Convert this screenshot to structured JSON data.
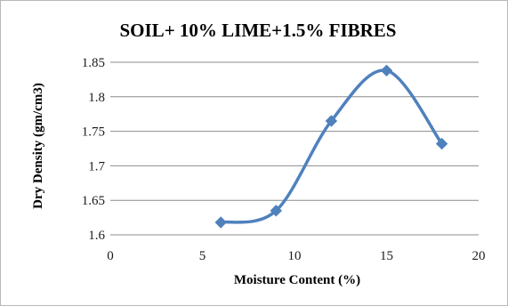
{
  "chart_data": {
    "type": "scatter",
    "title": "SOIL+ 10% LIME+1.5% FIBRES",
    "xlabel": "Moisture Content (%)",
    "ylabel": "Dry Density (gm/cm3)",
    "xlim": [
      0,
      20
    ],
    "ylim": [
      1.6,
      1.85
    ],
    "x_ticks": [
      0,
      5,
      10,
      15,
      20
    ],
    "y_ticks": [
      1.6,
      1.65,
      1.7,
      1.75,
      1.8,
      1.85
    ],
    "x_tick_labels": [
      "0",
      "5",
      "10",
      "15",
      "20"
    ],
    "y_tick_labels": [
      "1.6",
      "1.65",
      "1.7",
      "1.75",
      "1.8",
      "1.85"
    ],
    "grid": "horizontal",
    "legend": "none",
    "line": "smoothed",
    "marker": "diamond",
    "color": "#4f81bd",
    "series": [
      {
        "x": [
          6,
          9,
          12,
          15,
          18
        ],
        "y": [
          1.618,
          1.635,
          1.765,
          1.838,
          1.732
        ]
      }
    ]
  }
}
